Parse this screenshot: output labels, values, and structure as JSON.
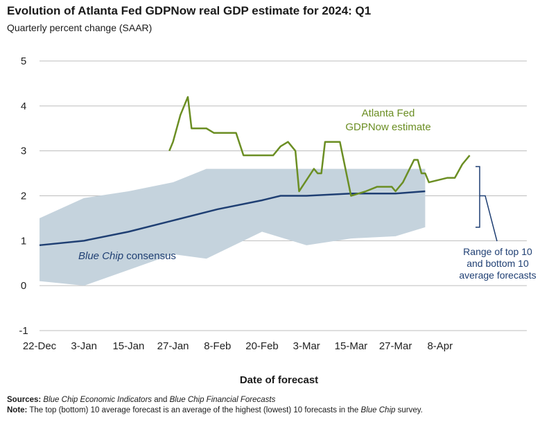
{
  "title": "Evolution of Atlanta Fed GDPNow real GDP estimate for 2024: Q1",
  "subtitle": "Quarterly percent change (SAAR)",
  "colors": {
    "gdpnow": "#6b8e23",
    "bluechip": "#1f3f73",
    "band": "#c5d3dd",
    "grid": "#bdbdbd",
    "note": "#1f3f73"
  },
  "chart_data": {
    "type": "line",
    "xlabel": "Date of forecast",
    "x_ticks": [
      "22-Dec",
      "3-Jan",
      "15-Jan",
      "27-Jan",
      "8-Feb",
      "20-Feb",
      "3-Mar",
      "15-Mar",
      "27-Mar",
      "8-Apr"
    ],
    "x_range": [
      "2023-12-22",
      "2024-04-14"
    ],
    "ylim": [
      -1,
      5
    ],
    "y_ticks": [
      "-1",
      "0",
      "1",
      "2",
      "3",
      "4",
      "5"
    ],
    "grid": "horizontal",
    "series": [
      {
        "name_parts": [
          "Atlanta Fed",
          "GDPNow estimate"
        ],
        "kind": "line",
        "points": [
          [
            "2024-01-26",
            3.0
          ],
          [
            "2024-01-27",
            3.2
          ],
          [
            "2024-01-29",
            3.8
          ],
          [
            "2024-01-31",
            4.2
          ],
          [
            "2024-02-01",
            3.5
          ],
          [
            "2024-02-05",
            3.5
          ],
          [
            "2024-02-07",
            3.4
          ],
          [
            "2024-02-13",
            3.4
          ],
          [
            "2024-02-15",
            2.9
          ],
          [
            "2024-02-23",
            2.9
          ],
          [
            "2024-02-25",
            3.1
          ],
          [
            "2024-02-27",
            3.2
          ],
          [
            "2024-02-29",
            3.0
          ],
          [
            "2024-03-01",
            2.1
          ],
          [
            "2024-03-05",
            2.6
          ],
          [
            "2024-03-06",
            2.5
          ],
          [
            "2024-03-07",
            2.5
          ],
          [
            "2024-03-08",
            3.2
          ],
          [
            "2024-03-12",
            3.2
          ],
          [
            "2024-03-15",
            2.0
          ],
          [
            "2024-03-19",
            2.1
          ],
          [
            "2024-03-22",
            2.2
          ],
          [
            "2024-03-26",
            2.2
          ],
          [
            "2024-03-27",
            2.1
          ],
          [
            "2024-03-29",
            2.3
          ],
          [
            "2024-04-01",
            2.8
          ],
          [
            "2024-04-02",
            2.8
          ],
          [
            "2024-04-03",
            2.5
          ],
          [
            "2024-04-04",
            2.5
          ],
          [
            "2024-04-05",
            2.3
          ],
          [
            "2024-04-10",
            2.4
          ],
          [
            "2024-04-12",
            2.4
          ],
          [
            "2024-04-14",
            2.7
          ],
          [
            "2024-04-16",
            2.9
          ]
        ]
      },
      {
        "name_parts": [
          "Blue Chip",
          " consensus"
        ],
        "kind": "line",
        "points": [
          [
            "2023-12-22",
            0.9
          ],
          [
            "2024-01-03",
            1.0
          ],
          [
            "2024-01-15",
            1.2
          ],
          [
            "2024-01-27",
            1.45
          ],
          [
            "2024-02-08",
            1.7
          ],
          [
            "2024-02-20",
            1.9
          ],
          [
            "2024-02-25",
            2.0
          ],
          [
            "2024-03-03",
            2.0
          ],
          [
            "2024-03-15",
            2.05
          ],
          [
            "2024-03-27",
            2.05
          ],
          [
            "2024-04-04",
            2.1
          ]
        ]
      },
      {
        "name_parts": [
          "Range of top 10",
          "and bottom 10",
          "average forecasts"
        ],
        "kind": "band",
        "upper": [
          [
            "2023-12-22",
            1.5
          ],
          [
            "2024-01-03",
            1.95
          ],
          [
            "2024-01-15",
            2.1
          ],
          [
            "2024-01-27",
            2.3
          ],
          [
            "2024-02-05",
            2.6
          ],
          [
            "2024-03-03",
            2.6
          ],
          [
            "2024-04-04",
            2.6
          ]
        ],
        "lower": [
          [
            "2023-12-22",
            0.1
          ],
          [
            "2024-01-03",
            0.0
          ],
          [
            "2024-01-15",
            0.35
          ],
          [
            "2024-01-27",
            0.7
          ],
          [
            "2024-02-05",
            0.6
          ],
          [
            "2024-02-20",
            1.2
          ],
          [
            "2024-03-03",
            0.9
          ],
          [
            "2024-03-15",
            1.05
          ],
          [
            "2024-03-27",
            1.1
          ],
          [
            "2024-04-04",
            1.3
          ]
        ]
      }
    ]
  },
  "footer": {
    "sources_label": "Sources:",
    "sources_pub1": "Blue Chip Economic Indicators",
    "sources_and": " and ",
    "sources_pub2": "Blue Chip Financial Forecasts",
    "note_label": "Note:",
    "note_text1": " The top (bottom) 10 average forecast is an average of the highest (lowest) 10 forecasts in the ",
    "note_em": "Blue Chip",
    "note_text2": " survey."
  }
}
